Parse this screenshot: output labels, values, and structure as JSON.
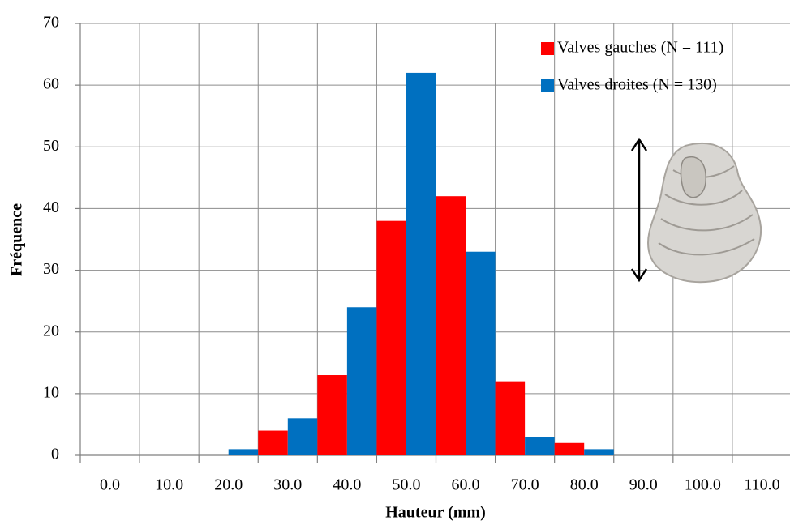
{
  "chart_data": {
    "type": "bar",
    "x_label": "Hauteur (mm)",
    "y_label": "Fréquence",
    "categories": [
      "0.0",
      "10.0",
      "20.0",
      "30.0",
      "40.0",
      "50.0",
      "60.0",
      "70.0",
      "80.0",
      "90.0",
      "100.0",
      "110.0"
    ],
    "series": [
      {
        "name": "Valves gauches (N = 111)",
        "color": "#ff0000",
        "values": [
          0,
          0,
          0,
          4,
          13,
          38,
          42,
          12,
          2,
          0,
          0,
          0
        ]
      },
      {
        "name": "Valves droites (N = 130)",
        "color": "#0070c0",
        "values": [
          0,
          0,
          1,
          6,
          24,
          62,
          33,
          3,
          1,
          0,
          0,
          0
        ]
      }
    ],
    "ylim": [
      0,
      70
    ],
    "yticks": [
      0,
      10,
      20,
      30,
      40,
      50,
      60,
      70
    ],
    "grid": true,
    "legend": "upper right"
  }
}
